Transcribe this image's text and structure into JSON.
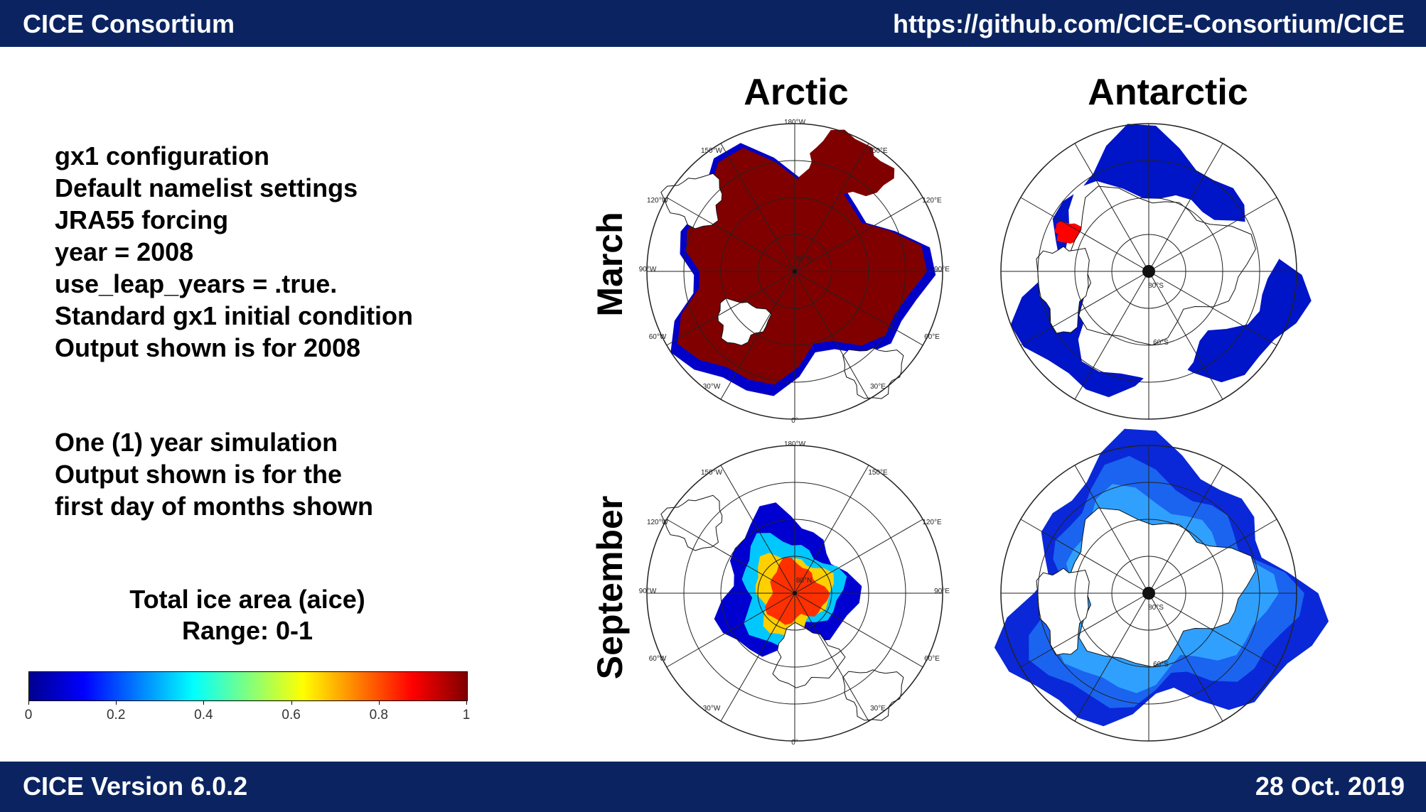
{
  "header": {
    "title": "CICE Consortium",
    "url": "https://github.com/CICE-Consortium/CICE"
  },
  "footer": {
    "version": "CICE Version 6.0.2",
    "date": "28 Oct. 2019"
  },
  "info": {
    "lines": [
      "gx1 configuration",
      "Default namelist settings",
      "JRA55 forcing",
      "year = 2008",
      "use_leap_years = .true.",
      "Standard gx1 initial condition",
      "Output shown is for 2008"
    ],
    "sim_lines": [
      "One (1) year simulation",
      "Output shown is for the",
      "first day of months shown"
    ]
  },
  "colorbar": {
    "title": "Total ice area (aice)",
    "range_label": "Range: 0-1",
    "ticks": [
      "0",
      "0.2",
      "0.4",
      "0.6",
      "0.8",
      "1"
    ],
    "colors": [
      "#00008f",
      "#0000ff",
      "#00ffff",
      "#ffff00",
      "#ff0000",
      "#800000"
    ]
  },
  "panels": {
    "col_arctic": "Arctic",
    "col_antarctic": "Antarctic",
    "row_march": "March",
    "row_september": "September"
  },
  "map_labels": {
    "top": "180°W",
    "bottom": "0°",
    "nl1": "150°W",
    "nl2": "120°W",
    "nl3": "90°W",
    "nl4": "60°W",
    "nl5": "30°W",
    "nr1": "150°E",
    "nr2": "120°E",
    "nr3": "90°E",
    "nr4": "60°E",
    "nr5": "30°E",
    "lat_n": "80°N",
    "lat_s": "80°S",
    "lat_s2": "60°S"
  }
}
